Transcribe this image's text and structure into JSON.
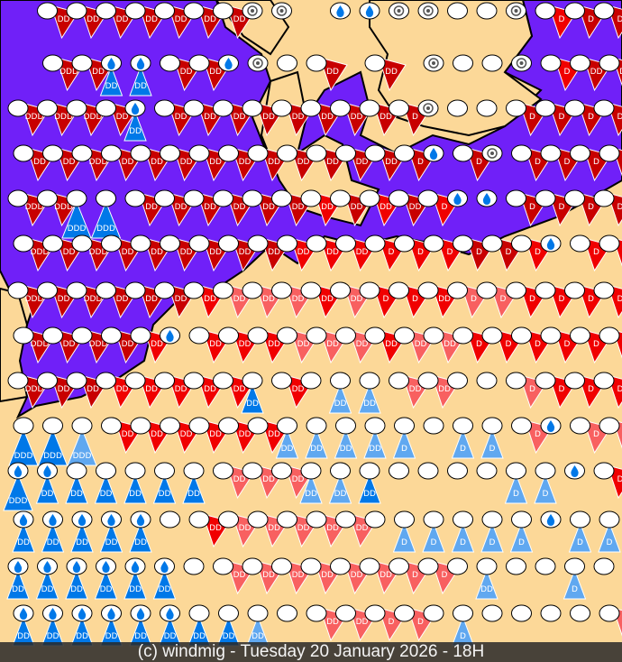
{
  "caption": "(c) windmig - Tuesday 20 January 2026 - 18H",
  "colors": {
    "land": "#fcd898",
    "sea": "#7020f8",
    "coast": "#000000",
    "dark_red": "#c80000",
    "red": "#f00000",
    "pink": "#f86060",
    "blue": "#0078e8",
    "light_blue": "#60a8f0",
    "circle": "#ffffff"
  },
  "legend_codes": {
    "d": "dark red wind barb",
    "r": "red wind barb",
    "p": "pink wind barb",
    "b": "blue wind barb",
    "l": "light blue wind barb",
    "w": "rain drop with blue wind barb",
    "s": "swirl circle",
    "o": "plain circle"
  },
  "symbol_rows": [
    "- d2 d2 d2 d2 d2 d2 d2 s s - w w s s o o s r1 d1 d1",
    "- d3 d2 w2 w2 d2 d2 w s o d2 - d2 - s o o s r1 d2 d2",
    "d3 d3 d3 d2 w2 d2 d2 d2 d2 d2 d2 d2 d2 d1 s o o d1 d1 d1 d1",
    "d2 d2 d3 d2 d2 d2 d2 d2 d2 d2 d2 d2 d2 d1 w d1 s d1 d1 d1 d1",
    "d3 d3 b3 b3 d2 d2 d2 d2 d2 d2 r2 d2 r2 d2 r1 w w d1 d1 d1 d1",
    "d3 d2 d3 d2 d2 d2 d2 d2 d2 r2 r2 r2 r1 r1 r1 d1 d1 r1 w r1 r1",
    "d3 d2 d3 d2 d2 d2 r2 p2 p2 p2 r2 p2 r1 r1 r2 p1 p1 r1 r1 r1 r1",
    "d3 d2 d3 d2 r2 w r2 r2 r2 p2 p2 p2 r2 p2 p2 r1 r1 r1 r1 r1 r1",
    "d3 d2 d2 r2 r2 r2 r2 r2 b2 r2 o l2 l2 p2 p2 o o p1 r1 r1 r1",
    "b3 b3 l3 r2 r2 r2 r2 r2 r2 l2 l2 l2 l2 l1 o l1 l1 p1 w p1 p1",
    "w3 w2 b2 b2 b2 b2 b2 p2 p2 p2 l2 l2 b2 o o o o l1 l1 w r1",
    "w2 w2 w2 w2 w2 o r2 p2 p2 p2 p2 p2 o l1 l1 l1 l1 l1 w l1 l1",
    "w2 w2 w2 w2 w2 w2 o p2 p2 p2 p2 p2 p2 p1 p1 o l2 o o l1 o",
    "w2 w2 w2 w2 w2 w2 b2 b2 l2 o p2 p2 p1 p1 o l1 o o o o p1"
  ]
}
